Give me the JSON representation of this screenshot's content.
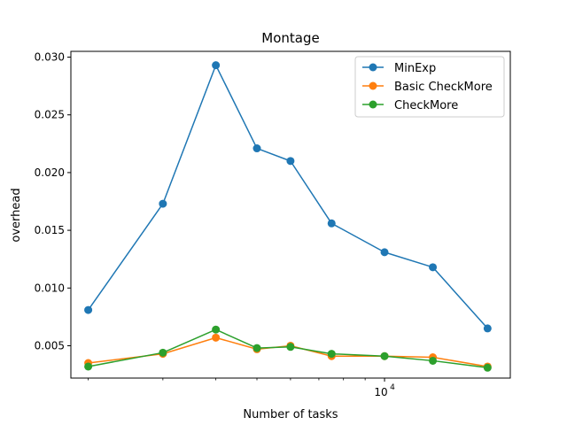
{
  "chart_data": {
    "type": "line",
    "title": "Montage",
    "xlabel": "Number of tasks",
    "ylabel": "overhead",
    "x_scale": "log",
    "x": [
      2000,
      3000,
      4000,
      5000,
      6000,
      7500,
      10000,
      13000,
      17500
    ],
    "x_ticks": [
      {
        "value": 10000,
        "base": "10",
        "exp": "4"
      }
    ],
    "x_minor_ticks": [
      2000,
      3000,
      4000,
      5000,
      6000,
      7000,
      8000,
      9000,
      20000
    ],
    "xlim": [
      1820,
      19800
    ],
    "ylim": [
      0.0022,
      0.0305
    ],
    "y_ticks": [
      0.005,
      0.01,
      0.015,
      0.02,
      0.025,
      0.03
    ],
    "y_tick_labels": [
      "0.005",
      "0.010",
      "0.015",
      "0.020",
      "0.025",
      "0.030"
    ],
    "grid": false,
    "legend_position": "top-right",
    "series": [
      {
        "name": "MinExp",
        "color": "#1f77b4",
        "values": [
          0.0081,
          0.0173,
          0.0293,
          0.0221,
          0.021,
          0.0156,
          0.0131,
          0.0118,
          0.0065
        ]
      },
      {
        "name": "Basic CheckMore",
        "color": "#ff7f0e",
        "values": [
          0.0035,
          0.0043,
          0.0057,
          0.0047,
          0.005,
          0.0041,
          0.0041,
          0.004,
          0.0032
        ]
      },
      {
        "name": "CheckMore",
        "color": "#2ca02c",
        "values": [
          0.0032,
          0.0044,
          0.0064,
          0.0048,
          0.0049,
          0.0043,
          0.0041,
          0.0037,
          0.0031
        ]
      }
    ]
  }
}
